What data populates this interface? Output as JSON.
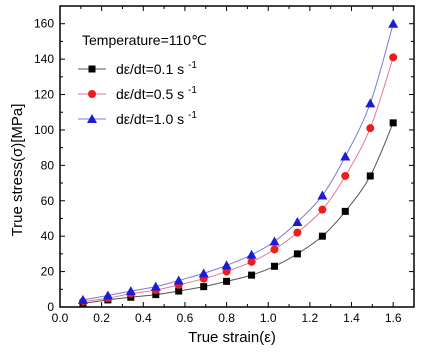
{
  "chart_data": {
    "type": "scatter",
    "title": "",
    "annotation": "Temperature=110℃",
    "xlabel": "True strain(ε)",
    "ylabel": "True stress(σ)[MPa]",
    "xlim": [
      0.0,
      1.7
    ],
    "ylim": [
      0,
      170
    ],
    "x_ticks": [
      "0.0",
      "0.2",
      "0.4",
      "0.6",
      "0.8",
      "1.0",
      "1.2",
      "1.4",
      "1.6"
    ],
    "y_ticks": [
      "0",
      "20",
      "40",
      "60",
      "80",
      "100",
      "120",
      "140",
      "160"
    ],
    "grid": false,
    "legend_position": "top-left",
    "x": [
      0.11,
      0.23,
      0.34,
      0.46,
      0.57,
      0.69,
      0.8,
      0.92,
      1.03,
      1.14,
      1.26,
      1.37,
      1.49,
      1.6
    ],
    "series": [
      {
        "name": "dε/dt=0.1 s",
        "marker": "square",
        "color": "#000000",
        "line_color": "#555555",
        "values": [
          2,
          4,
          5.5,
          7,
          9,
          11.5,
          14.5,
          18,
          23,
          30,
          40,
          54,
          74,
          104
        ]
      },
      {
        "name": "dε/dt=0.5 s",
        "marker": "circle",
        "color": "#ee1c1c",
        "line_color": "#e07a9a",
        "values": [
          3,
          5,
          7.5,
          9.5,
          12.5,
          16,
          20,
          25.5,
          32.5,
          42,
          55,
          74,
          101,
          141
        ]
      },
      {
        "name": "dε/dt=1.0 s",
        "marker": "triangle",
        "color": "#1b1bd8",
        "line_color": "#7a7ae0",
        "values": [
          4,
          6.5,
          9,
          11.5,
          15,
          19,
          23.5,
          29.5,
          37,
          48,
          63,
          85,
          115,
          160
        ]
      }
    ],
    "legend_superscript": "-1"
  }
}
